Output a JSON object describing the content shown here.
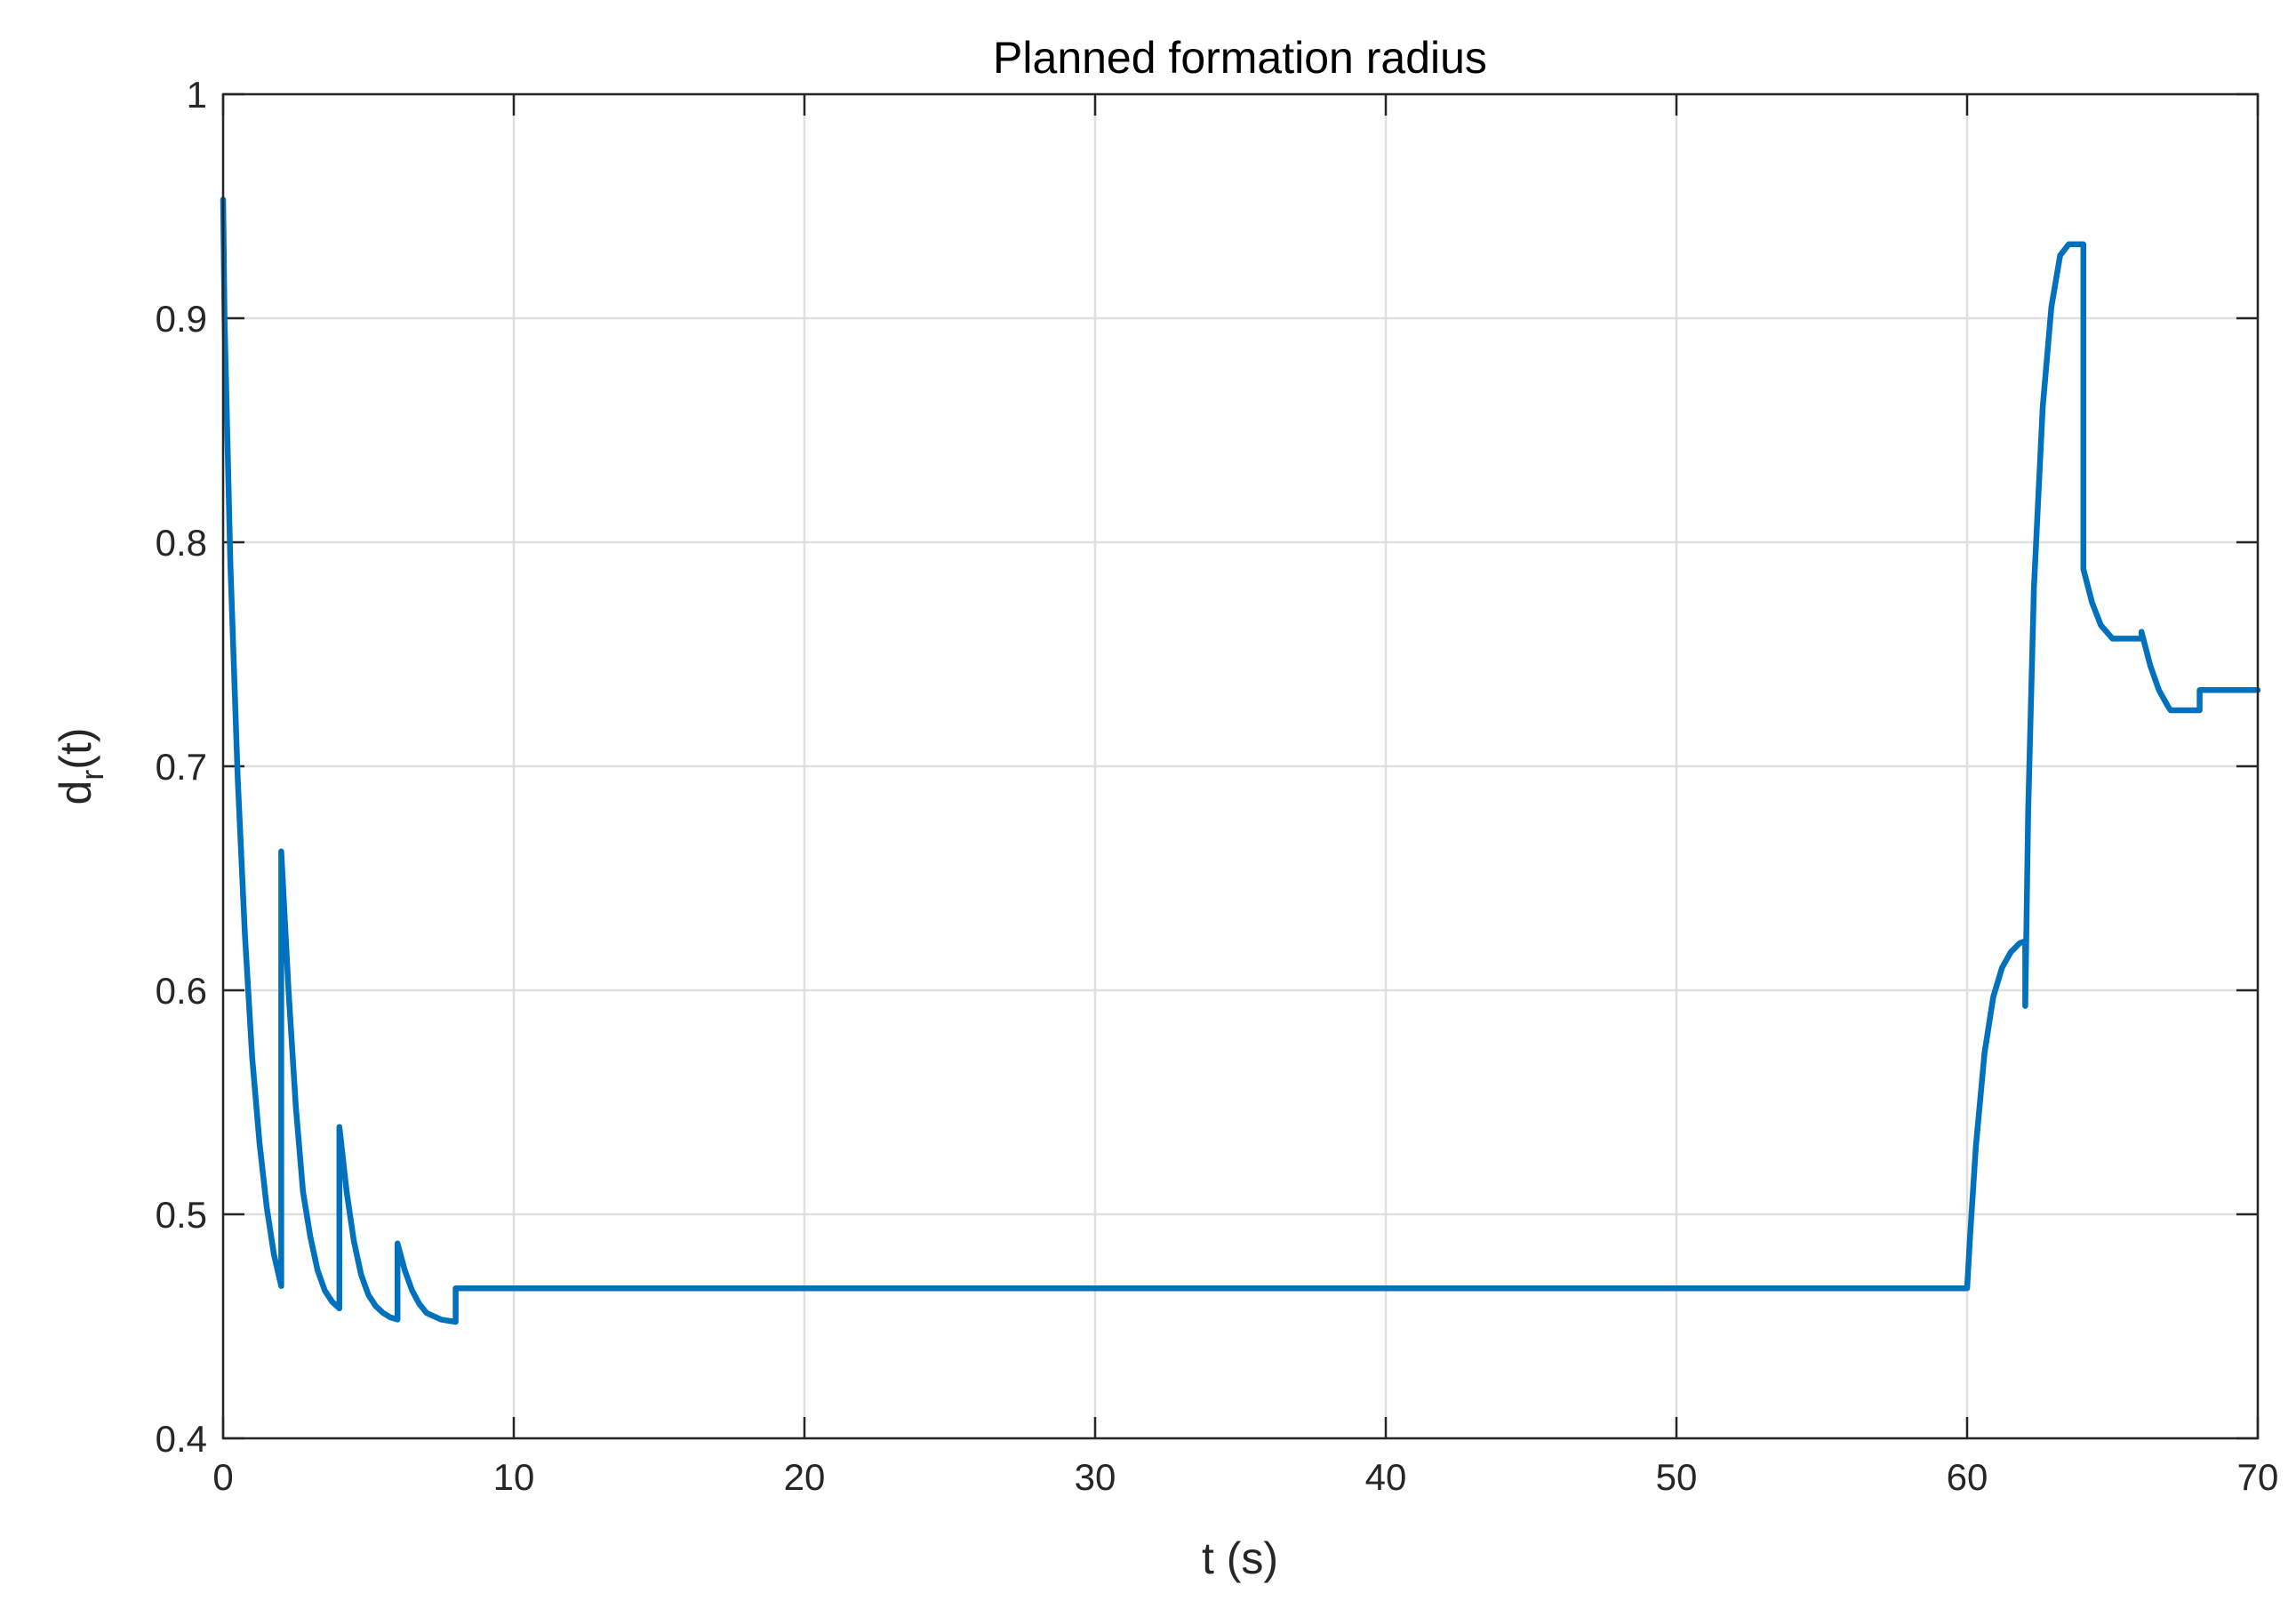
{
  "chart_data": {
    "type": "line",
    "title": "Planned formation radius",
    "xlabel": "t (s)",
    "ylabel": {
      "main": "d",
      "sub": "r",
      "suffix": "(t)"
    },
    "xlim": [
      0,
      70
    ],
    "ylim": [
      0.4,
      1.0
    ],
    "xticks": [
      0,
      10,
      20,
      30,
      40,
      50,
      60,
      70
    ],
    "yticks": [
      0.4,
      0.5,
      0.6,
      0.7,
      0.8,
      0.9,
      1.0
    ],
    "xtick_labels": [
      "0",
      "10",
      "20",
      "30",
      "40",
      "50",
      "60",
      "70"
    ],
    "ytick_labels": [
      "0.4",
      "0.5",
      "0.6",
      "0.7",
      "0.8",
      "0.9",
      "1"
    ],
    "grid": true,
    "series": [
      {
        "color": "#0072bd",
        "x": [
          0,
          0.05,
          0.25,
          0.5,
          0.75,
          1.0,
          1.25,
          1.5,
          1.75,
          2.0,
          2.001,
          2.25,
          2.5,
          2.75,
          3.0,
          3.25,
          3.5,
          3.75,
          4.0,
          4.001,
          4.25,
          4.5,
          4.75,
          5.0,
          5.25,
          5.5,
          5.75,
          6.0,
          6.001,
          6.25,
          6.5,
          6.75,
          7.0,
          7.5,
          8.0,
          8.001,
          10,
          20,
          30,
          40,
          50,
          60.0,
          60.1,
          60.3,
          60.6,
          60.9,
          61.2,
          61.5,
          61.8,
          62.0,
          62.001,
          62.1,
          62.3,
          62.6,
          62.9,
          63.2,
          63.5,
          63.65,
          64.0,
          64.001,
          64.3,
          64.6,
          65.0,
          66.0,
          66.001,
          66.3,
          66.6,
          66.9,
          67.0,
          68.0,
          68.001,
          70.0
        ],
        "y": [
          0.953,
          0.9,
          0.79,
          0.695,
          0.625,
          0.57,
          0.532,
          0.503,
          0.482,
          0.468,
          0.662,
          0.6,
          0.548,
          0.51,
          0.49,
          0.475,
          0.466,
          0.461,
          0.458,
          0.539,
          0.51,
          0.488,
          0.473,
          0.464,
          0.459,
          0.456,
          0.454,
          0.453,
          0.487,
          0.475,
          0.466,
          0.46,
          0.456,
          0.453,
          0.452,
          0.467,
          0.467,
          0.467,
          0.467,
          0.467,
          0.467,
          0.467,
          0.49,
          0.53,
          0.572,
          0.597,
          0.61,
          0.617,
          0.621,
          0.622,
          0.593,
          0.68,
          0.78,
          0.86,
          0.905,
          0.928,
          0.933,
          0.933,
          0.933,
          0.788,
          0.773,
          0.763,
          0.757,
          0.757,
          0.76,
          0.745,
          0.734,
          0.727,
          0.725,
          0.725,
          0.734,
          0.734
        ]
      }
    ]
  }
}
